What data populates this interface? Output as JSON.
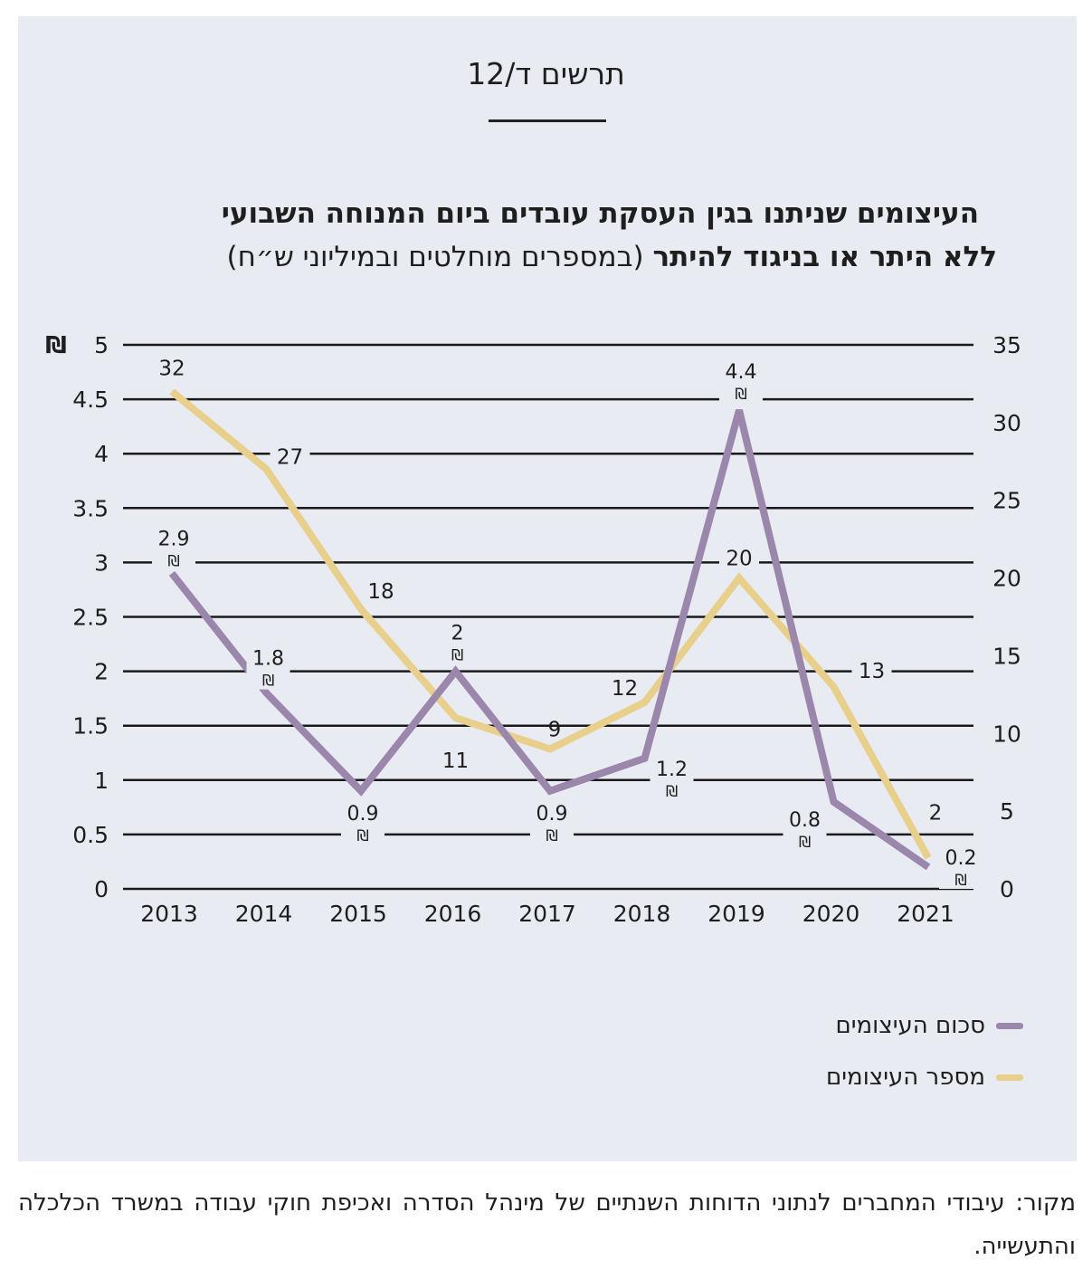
{
  "figure": {
    "label": "תרשים ד/12",
    "title_line1": "העיצומים שניתנו בגין העסקת עובדים ביום המנוחה השבועי",
    "title_line2_bold": "ללא היתר או בניגוד להיתר",
    "title_line2_normal": "(במספרים מוחלטים ובמיליוני ש״ח)"
  },
  "source": "מקור: עיבודי המחברים לנתוני הדוחות השנתיים של מינהל הסדרה ואכיפת חוקי עבודה במשרד הכלכלה והתעשייה.",
  "colors": {
    "background": "#e8ebf1",
    "amount_series": "#9b86ac",
    "count_series": "#e8d08c",
    "gridline": "#1a1a1a",
    "text": "#1e1e1e"
  },
  "chart_data": {
    "type": "line",
    "categories": [
      "2013",
      "2014",
      "2015",
      "2016",
      "2017",
      "2018",
      "2019",
      "2020",
      "2021"
    ],
    "left_axis": {
      "label": "₪",
      "ylim": [
        0,
        5
      ],
      "ticks": [
        "0",
        "0.5",
        "1",
        "1.5",
        "2",
        "2.5",
        "3",
        "3.5",
        "4",
        "4.5",
        "5"
      ]
    },
    "right_axis": {
      "ylim": [
        0,
        35
      ],
      "ticks": [
        "0",
        "5",
        "10",
        "15",
        "20",
        "25",
        "30",
        "35"
      ]
    },
    "grid": true,
    "legend_position": "bottom-right",
    "series": [
      {
        "name": "סכום העיצומים",
        "axis": "left",
        "color": "#9b86ac",
        "values": [
          2.9,
          1.8,
          0.9,
          2,
          0.9,
          1.2,
          4.4,
          0.8,
          0.2
        ],
        "labels": [
          "2.9",
          "1.8",
          "0.9",
          "2",
          "0.9",
          "1.2",
          "4.4",
          "0.8",
          "0.2"
        ],
        "unit_symbol": "₪"
      },
      {
        "name": "מספר העיצומים",
        "axis": "right",
        "color": "#e8d08c",
        "values": [
          32,
          27,
          18,
          11,
          9,
          12,
          20,
          13,
          2
        ],
        "labels": [
          "32",
          "27",
          "18",
          "11",
          "9",
          "12",
          "20",
          "13",
          "2"
        ]
      }
    ]
  }
}
